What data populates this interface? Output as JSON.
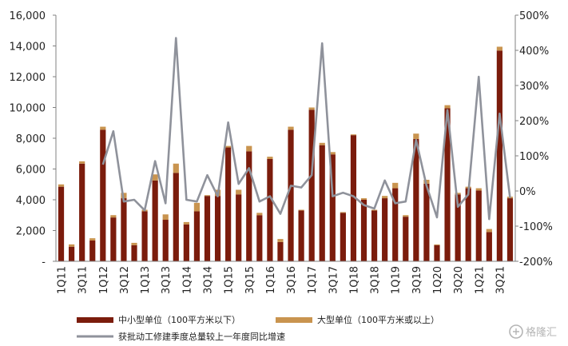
{
  "chart_data": {
    "type": "bar",
    "stacked": true,
    "categories": [
      "1Q11",
      "2Q11",
      "3Q11",
      "4Q11",
      "1Q12",
      "2Q12",
      "3Q12",
      "4Q12",
      "1Q13",
      "2Q13",
      "3Q13",
      "4Q13",
      "1Q14",
      "2Q14",
      "3Q14",
      "4Q14",
      "1Q15",
      "2Q15",
      "3Q15",
      "4Q15",
      "1Q16",
      "2Q16",
      "3Q16",
      "4Q16",
      "1Q17",
      "2Q17",
      "3Q17",
      "4Q17",
      "1Q18",
      "2Q18",
      "3Q18",
      "4Q18",
      "1Q19",
      "2Q19",
      "3Q19",
      "4Q19",
      "1Q20",
      "2Q20",
      "3Q20",
      "4Q20",
      "1Q21",
      "2Q21",
      "3Q21",
      "4Q21"
    ],
    "tick_labels": [
      "1Q11",
      "3Q11",
      "1Q12",
      "3Q12",
      "1Q13",
      "3Q13",
      "1Q14",
      "3Q14",
      "1Q15",
      "3Q15",
      "1Q16",
      "3Q16",
      "1Q17",
      "3Q17",
      "1Q18",
      "3Q18",
      "1Q19",
      "3Q19",
      "1Q20",
      "3Q20",
      "1Q21",
      "3Q21"
    ],
    "series": [
      {
        "name": "中小型单位（100平方米以下）",
        "axis": "left",
        "color": "#7b1c0c",
        "values": [
          4850,
          950,
          6350,
          1350,
          8550,
          2850,
          4100,
          1050,
          3250,
          5250,
          2700,
          5750,
          2400,
          3250,
          4250,
          4250,
          7400,
          4350,
          7150,
          3000,
          6650,
          1250,
          8550,
          3300,
          9850,
          7550,
          6950,
          3150,
          8200,
          4000,
          3300,
          4100,
          4750,
          2900,
          7950,
          5050,
          1050,
          9950,
          4350,
          4750,
          4600,
          1900,
          13700,
          4100
        ]
      },
      {
        "name": "大型单位（100平方米或以上）",
        "axis": "left",
        "color": "#c9944f",
        "values": [
          150,
          150,
          150,
          150,
          200,
          150,
          350,
          150,
          100,
          400,
          350,
          600,
          150,
          550,
          50,
          400,
          100,
          300,
          350,
          150,
          150,
          200,
          200,
          50,
          150,
          150,
          150,
          50,
          50,
          100,
          50,
          150,
          350,
          100,
          350,
          250,
          50,
          200,
          100,
          100,
          150,
          200,
          250,
          100
        ]
      },
      {
        "name": "获批动工修建季度总量较上一年度同比增速",
        "axis": "right",
        "type": "line",
        "color": "#8f929b",
        "values": [
          null,
          null,
          null,
          null,
          75,
          170,
          -30,
          -25,
          -55,
          85,
          -35,
          435,
          -25,
          -30,
          45,
          -15,
          195,
          20,
          65,
          -30,
          -15,
          -65,
          15,
          10,
          45,
          420,
          -15,
          -5,
          -15,
          -40,
          -50,
          30,
          -35,
          -30,
          145,
          15,
          -75,
          230,
          -45,
          -10,
          325,
          -80,
          220,
          -20
        ]
      }
    ],
    "y_left": {
      "min": 0,
      "max": 16000,
      "ticks": [
        "-",
        "2,000",
        "4,000",
        "6,000",
        "8,000",
        "10,000",
        "12,000",
        "14,000",
        "16,000"
      ]
    },
    "y_right": {
      "min": -200,
      "max": 500,
      "ticks": [
        "-200%",
        "-100%",
        "0%",
        "100%",
        "200%",
        "300%",
        "400%",
        "500%"
      ]
    },
    "grid": false,
    "legend_position": "bottom"
  },
  "watermark": {
    "text": "格隆汇"
  }
}
